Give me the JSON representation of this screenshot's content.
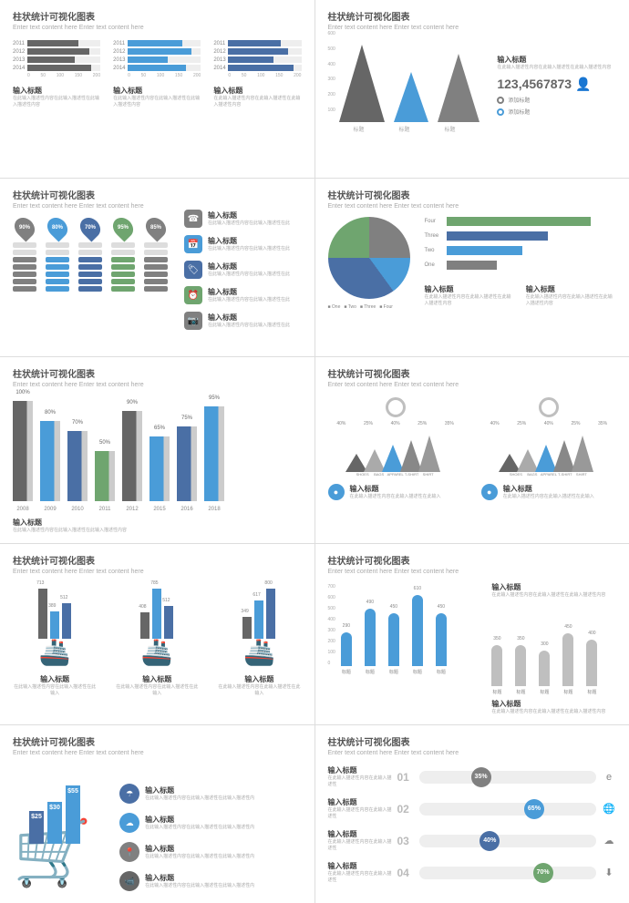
{
  "common": {
    "title": "柱状统计可视化图表",
    "subtitle": "Enter text content here Enter text content here",
    "caption": "输入标题",
    "caption_desc": "在此输入描述性内容在此输入描述性在此输入描述性内容",
    "colors": {
      "blue": "#4a9cd8",
      "navy": "#4a6fa5",
      "green": "#6fa56f",
      "gray": "#808080",
      "darkgray": "#666666",
      "lightgray": "#bfbfbf",
      "bg": "#ffffff"
    }
  },
  "p1": {
    "years": [
      "2011",
      "2012",
      "2013",
      "2014"
    ],
    "ticks": [
      "0",
      "50",
      "100",
      "150",
      "200"
    ],
    "cols": [
      {
        "color": "#666666",
        "values": [
          140,
          170,
          130,
          175
        ]
      },
      {
        "color": "#4a9cd8",
        "values": [
          150,
          175,
          110,
          160
        ]
      },
      {
        "color": "#4a6fa5",
        "values": [
          145,
          165,
          125,
          180
        ]
      }
    ]
  },
  "p2": {
    "yticks": [
      "600",
      "500",
      "400",
      "300",
      "200",
      "100"
    ],
    "tris": [
      {
        "color": "#666666",
        "w": 50,
        "h": 85
      },
      {
        "color": "#4a9cd8",
        "w": 38,
        "h": 55
      },
      {
        "color": "#808080",
        "w": 46,
        "h": 75
      }
    ],
    "xlabels": [
      "标题",
      "标题",
      "标题"
    ],
    "big_number": "123,4567873",
    "legend": [
      {
        "color": "#808080",
        "label": "添加标题"
      },
      {
        "color": "#4a9cd8",
        "label": "添加标题"
      }
    ]
  },
  "p3": {
    "pins": [
      {
        "pct": "90%",
        "color": "#808080"
      },
      {
        "pct": "80%",
        "color": "#4a9cd8"
      },
      {
        "pct": "70%",
        "color": "#4a6fa5"
      },
      {
        "pct": "95%",
        "color": "#6fa56f"
      },
      {
        "pct": "85%",
        "color": "#808080"
      }
    ],
    "stack_count": 7,
    "icons": [
      {
        "glyph": "☎",
        "color": "#808080"
      },
      {
        "glyph": "📅",
        "color": "#4a9cd8"
      },
      {
        "glyph": "🏷",
        "color": "#4a6fa5"
      },
      {
        "glyph": "⏰",
        "color": "#6fa56f"
      },
      {
        "glyph": "📷",
        "color": "#808080"
      }
    ]
  },
  "p4": {
    "pie_slices": [
      {
        "label": "One",
        "color": "#808080",
        "pct": 25
      },
      {
        "label": "Two",
        "color": "#4a9cd8",
        "pct": 15
      },
      {
        "label": "Three",
        "color": "#4a6fa5",
        "pct": 35
      },
      {
        "label": "Four",
        "color": "#6fa56f",
        "pct": 25
      }
    ],
    "hbars": [
      {
        "label": "Four",
        "color": "#6fa56f",
        "val": 85
      },
      {
        "label": "Three",
        "color": "#4a6fa5",
        "val": 60
      },
      {
        "label": "Two",
        "color": "#4a9cd8",
        "val": 45
      },
      {
        "label": "One",
        "color": "#808080",
        "val": 30
      }
    ]
  },
  "p5": {
    "bars": [
      {
        "year": "2008",
        "pct": "100%",
        "h": 100,
        "color": "#666666"
      },
      {
        "year": "2009",
        "pct": "80%",
        "h": 80,
        "color": "#4a9cd8"
      },
      {
        "year": "2010",
        "pct": "70%",
        "h": 70,
        "color": "#4a6fa5"
      },
      {
        "year": "2011",
        "pct": "50%",
        "h": 50,
        "color": "#6fa56f"
      },
      {
        "year": "2012",
        "pct": "90%",
        "h": 90,
        "color": "#666666"
      },
      {
        "year": "2015",
        "pct": "65%",
        "h": 65,
        "color": "#4a9cd8"
      },
      {
        "year": "2016",
        "pct": "75%",
        "h": 75,
        "color": "#4a6fa5"
      },
      {
        "year": "2018",
        "pct": "95%",
        "h": 95,
        "color": "#4a9cd8"
      }
    ]
  },
  "p6": {
    "groups": [
      {
        "pcts": [
          "40%",
          "25%",
          "40%",
          "25%",
          "35%"
        ],
        "circ_color": "#bfbfbf"
      },
      {
        "pcts": [
          "40%",
          "25%",
          "40%",
          "25%",
          "35%"
        ],
        "circ_color": "#bfbfbf"
      }
    ],
    "cat_labels": [
      "SHOES",
      "BAGS",
      "APPAREL",
      "T-SHIRT",
      "SHIRT"
    ],
    "tri_colors": [
      "#666",
      "#aaa",
      "#4a9cd8",
      "#888",
      "#999"
    ]
  },
  "p7": {
    "ships": [
      {
        "vals": [
          713,
          389,
          512
        ],
        "colors": [
          "#666",
          "#4a9cd8",
          "#4a6fa5"
        ]
      },
      {
        "vals": [
          408,
          785,
          512
        ],
        "colors": [
          "#666",
          "#4a9cd8",
          "#4a6fa5"
        ]
      },
      {
        "vals": [
          349,
          617,
          800
        ],
        "colors": [
          "#666",
          "#4a9cd8",
          "#4a6fa5"
        ]
      }
    ]
  },
  "p8": {
    "yticks": [
      "700",
      "600",
      "500",
      "400",
      "300",
      "200",
      "100",
      "0"
    ],
    "series1": {
      "color": "#4a9cd8",
      "vals": [
        290,
        490,
        450,
        610,
        450
      ],
      "labels": [
        "标题",
        "标题",
        "标题",
        "标题",
        "标题"
      ]
    },
    "series2": {
      "color": "#bfbfbf",
      "vals": [
        350,
        350,
        300,
        450,
        400
      ],
      "labels": [
        "标题",
        "标题",
        "标题",
        "标题",
        "标题"
      ]
    }
  },
  "p9": {
    "bars": [
      {
        "val": "$25",
        "h": 36,
        "color": "#4a6fa5"
      },
      {
        "val": "$30",
        "h": 46,
        "color": "#4a9cd8"
      },
      {
        "val": "$55",
        "h": 64,
        "color": "#4a9cd8"
      }
    ],
    "icons": [
      {
        "glyph": "☂",
        "color": "#4a6fa5"
      },
      {
        "glyph": "☁",
        "color": "#4a9cd8"
      },
      {
        "glyph": "📍",
        "color": "#808080"
      },
      {
        "glyph": "📹",
        "color": "#666666"
      }
    ]
  },
  "p10": {
    "counts": [
      "01",
      "02",
      "03",
      "04"
    ],
    "rows": [
      {
        "pct": "35%",
        "pos": 35,
        "color": "#808080",
        "icon": "e"
      },
      {
        "pct": "65%",
        "pos": 65,
        "color": "#4a9cd8",
        "icon": "🌐"
      },
      {
        "pct": "40%",
        "pos": 40,
        "color": "#4a6fa5",
        "icon": "☁"
      },
      {
        "pct": "70%",
        "pos": 70,
        "color": "#6fa56f",
        "icon": "⬇"
      }
    ]
  }
}
